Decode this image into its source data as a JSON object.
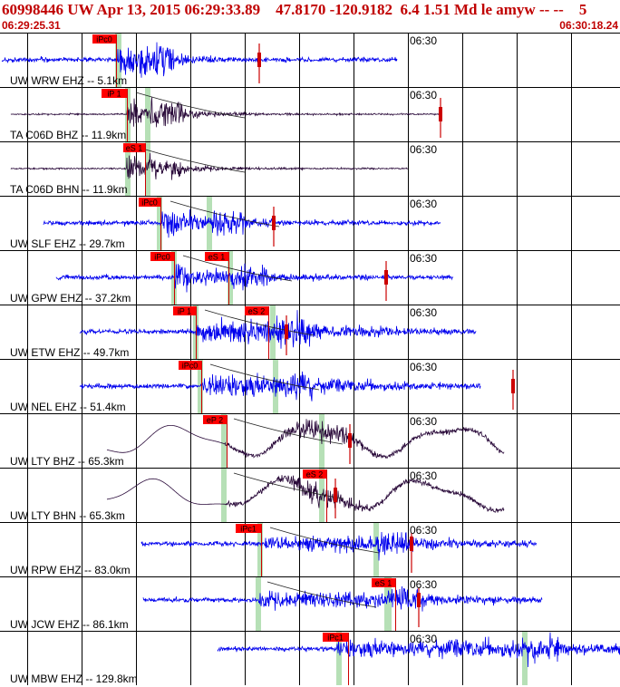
{
  "header": {
    "title": "60998446 UW Apr 13, 2015 06:29:33.89    47.8170 -120.9182  6.4 1.51 Md le amyw -- --    5",
    "start_time": "06:29:25.31",
    "end_time": "06:30:18.24"
  },
  "minute_label": "06:30",
  "colors": {
    "header_text": "#c00000",
    "trace_ehz": "#0000ee",
    "trace_broadband": "#2a0a3a",
    "pick_box": "#ff0000",
    "pick_line": "#cc0000",
    "window_band": "#b6e0b6",
    "grid": "#000000"
  },
  "traces": [
    {
      "label": "UW WRW EHZ -- 5.1km",
      "kind": "ehz",
      "picks": [
        "iPc0"
      ],
      "markers": [
        "06:30"
      ]
    },
    {
      "label": "TA C06D BHZ -- 11.9km",
      "kind": "bb",
      "picks": [
        "iP 1"
      ],
      "markers": [
        "06:30"
      ]
    },
    {
      "label": "TA C06D BHN -- 11.9km",
      "kind": "bb",
      "picks": [
        "eS 1"
      ],
      "markers": [
        "06:30"
      ]
    },
    {
      "label": "UW SLF EHZ -- 29.7km",
      "kind": "ehz",
      "picks": [
        "iPc0"
      ],
      "markers": [
        "06:30"
      ]
    },
    {
      "label": "UW GPW EHZ -- 37.2km",
      "kind": "ehz",
      "picks": [
        "iPc0",
        "eS 1"
      ],
      "markers": [
        "06:30"
      ]
    },
    {
      "label": "UW ETW EHZ -- 49.7km",
      "kind": "ehz",
      "picks": [
        "iP 1",
        "eS 2"
      ],
      "markers": [
        "06:30"
      ]
    },
    {
      "label": "UW NEL EHZ -- 51.4km",
      "kind": "ehz",
      "picks": [
        "iPc0"
      ],
      "markers": [
        "06:30"
      ]
    },
    {
      "label": "UW LTY BHZ -- 65.3km",
      "kind": "lp",
      "picks": [
        "eP 2"
      ],
      "markers": [
        "06:30"
      ]
    },
    {
      "label": "UW LTY BHN -- 65.3km",
      "kind": "lp",
      "picks": [
        "eS 2"
      ],
      "markers": [
        "06:30"
      ]
    },
    {
      "label": "UW RPW EHZ -- 83.0km",
      "kind": "ehz",
      "picks": [
        "iPc1"
      ],
      "markers": [
        "06:30"
      ]
    },
    {
      "label": "UW JCW EHZ -- 86.1km",
      "kind": "ehz",
      "picks": [
        "eS 1"
      ],
      "markers": [
        "06:30"
      ]
    },
    {
      "label": "UW MBW EHZ -- 129.8km",
      "kind": "ehz",
      "picks": [
        "iPc1"
      ],
      "markers": [
        "06:30"
      ]
    }
  ]
}
